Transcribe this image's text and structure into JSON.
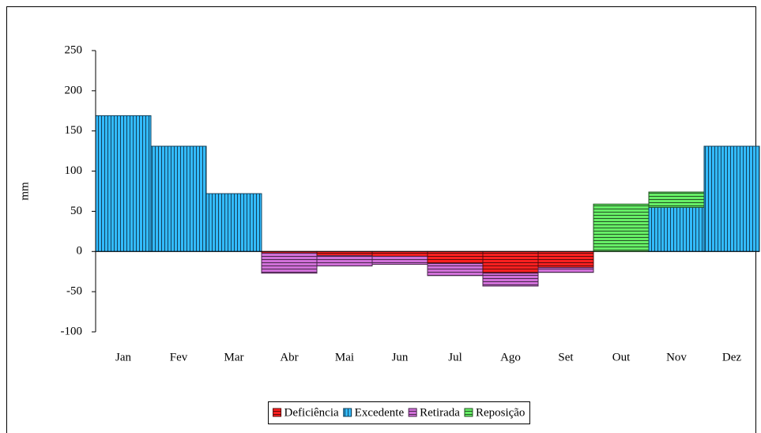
{
  "chart_data": {
    "type": "stacked_bar",
    "y_label": "mm",
    "categories": [
      "Jan",
      "Fev",
      "Mar",
      "Abr",
      "Mai",
      "Jun",
      "Jul",
      "Ago",
      "Set",
      "Out",
      "Nov",
      "Dez"
    ],
    "series": [
      {
        "name": "Deficiência",
        "color": "#ff2020",
        "hatch": "horizontal",
        "values": [
          null,
          null,
          null,
          -2,
          -5,
          -6,
          -15,
          -27,
          -20,
          null,
          null,
          null
        ]
      },
      {
        "name": "Excedente",
        "color": "#33bbff",
        "hatch": "vertical",
        "values": [
          169,
          131,
          72,
          null,
          null,
          null,
          null,
          null,
          null,
          null,
          55,
          131
        ]
      },
      {
        "name": "Retirada",
        "color": "#d070d8",
        "hatch": "horizontal",
        "values": [
          null,
          null,
          null,
          -25,
          -13,
          -10,
          -15,
          -16,
          -6,
          null,
          null,
          null
        ]
      },
      {
        "name": "Reposição",
        "color": "#66ee66",
        "hatch": "horizontal",
        "values": [
          null,
          null,
          null,
          null,
          null,
          null,
          null,
          null,
          null,
          59,
          19,
          null
        ]
      }
    ],
    "ylim": [
      -100,
      250
    ],
    "yticks": [
      -100,
      -50,
      0,
      50,
      100,
      150,
      200,
      250
    ],
    "legend": "bottom"
  }
}
